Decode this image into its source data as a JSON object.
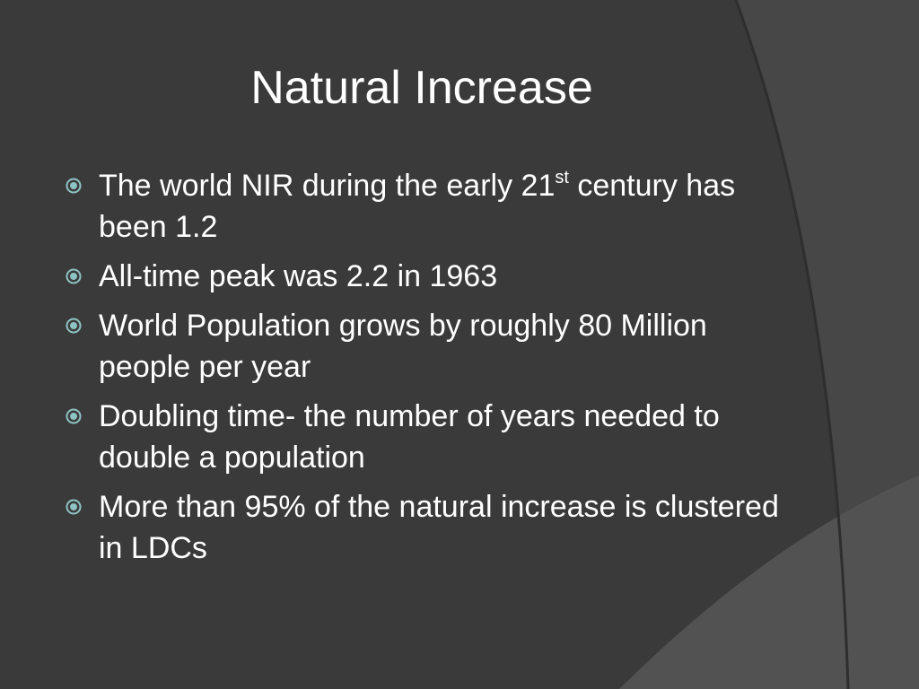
{
  "slide": {
    "title": "Natural Increase",
    "bullets": [
      {
        "text": "The world NIR during the early 21",
        "sup": "st",
        "after": " century has been 1.2"
      },
      {
        "text": "All-time peak was 2.2 in 1963"
      },
      {
        "text": "World Population grows by roughly 80 Million people per year"
      },
      {
        "text": "Doubling time- the number of years needed to double a population"
      },
      {
        "text": "More than 95% of the natural increase is clustered in LDCs"
      }
    ]
  }
}
